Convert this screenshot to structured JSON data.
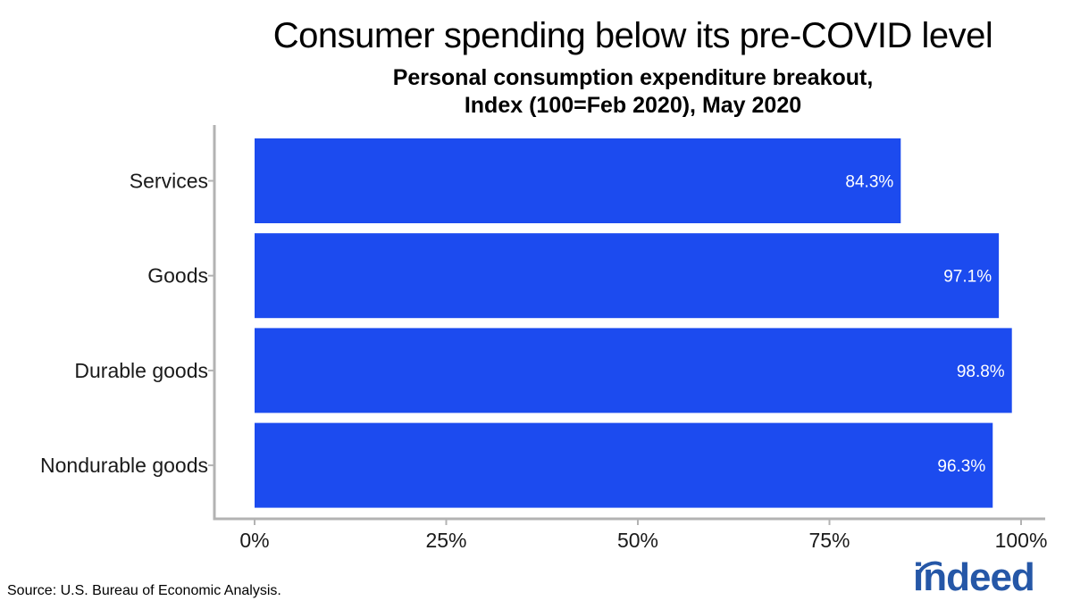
{
  "chart_data": {
    "type": "bar",
    "orientation": "horizontal",
    "title": "Consumer spending below its pre-COVID level",
    "subtitle_lines": [
      "Personal consumption expenditure breakout,",
      "Index (100=Feb 2020), May 2020"
    ],
    "categories": [
      "Services",
      "Goods",
      "Durable goods",
      "Nondurable goods"
    ],
    "values": [
      84.3,
      97.1,
      98.8,
      96.3
    ],
    "value_labels": [
      "84.3%",
      "97.1%",
      "98.8%",
      "96.3%"
    ],
    "xlim": [
      0,
      100
    ],
    "x_ticks": [
      0,
      25,
      50,
      75,
      100
    ],
    "x_tick_labels": [
      "0%",
      "25%",
      "50%",
      "75%",
      "100%"
    ],
    "xlabel": "",
    "ylabel": "",
    "grid": false,
    "bar_color": "#1c4bef",
    "label_color": "#ffffff"
  },
  "source": "Source: U.S. Bureau of Economic Analysis.",
  "logo": {
    "text": "indeed",
    "color": "#2557a7"
  }
}
